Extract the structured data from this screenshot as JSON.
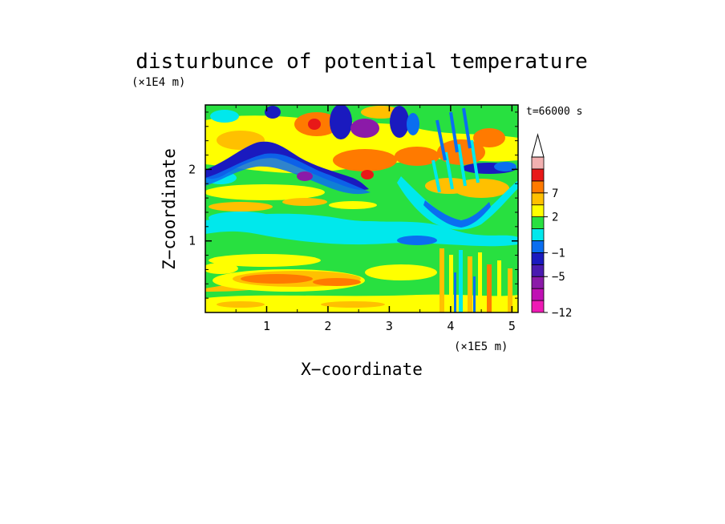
{
  "chart_data": {
    "type": "heatmap",
    "title": "disturbunce of potential temperature",
    "xlabel": "X−coordinate",
    "ylabel": "Z−coordinate",
    "x_unit": "(×1E5 m)",
    "y_unit": "(×1E4 m)",
    "time_label": "t=66000 s",
    "xlim": [
      0,
      5.1
    ],
    "ylim": [
      0,
      2.9
    ],
    "x_ticks": [
      {
        "value": 1,
        "label": "1"
      },
      {
        "value": 2,
        "label": "2"
      },
      {
        "value": 3,
        "label": "3"
      },
      {
        "value": 4,
        "label": "4"
      },
      {
        "value": 5,
        "label": "5"
      }
    ],
    "y_ticks": [
      {
        "value": 1,
        "label": "1"
      },
      {
        "value": 2,
        "label": "2"
      }
    ],
    "colorbar": {
      "levels": [
        -12,
        -9,
        -7,
        -5,
        -3,
        -1,
        0,
        1,
        2,
        4,
        7,
        9,
        12
      ],
      "labeled": [
        {
          "value": -12,
          "label": "−12"
        },
        {
          "value": -5,
          "label": "−5"
        },
        {
          "value": -1,
          "label": "−1"
        },
        {
          "value": 2,
          "label": "2"
        },
        {
          "value": 7,
          "label": "7"
        }
      ],
      "colors": [
        "#ee1ab4",
        "#c011b4",
        "#8b1aa8",
        "#4a1ab0",
        "#1a1abf",
        "#0a6ef0",
        "#00e8ec",
        "#28e040",
        "#ffff00",
        "#ffc000",
        "#ff7a00",
        "#e81818",
        "#f2b0b0"
      ],
      "extend": "max"
    },
    "field_samples": [
      {
        "x": 0.3,
        "z": 0.1,
        "value": 2
      },
      {
        "x": 1.5,
        "z": 0.5,
        "value": 4
      },
      {
        "x": 0.5,
        "z": 0.3,
        "value": 1
      },
      {
        "x": 2.5,
        "z": 0.9,
        "value": 0.5
      },
      {
        "x": 1.5,
        "z": 1.2,
        "value": -0.5
      },
      {
        "x": 3.0,
        "z": 1.1,
        "value": -0.5
      },
      {
        "x": 1.0,
        "z": 1.6,
        "value": 1
      },
      {
        "x": 1.5,
        "z": 2.2,
        "value": 1
      },
      {
        "x": 1.4,
        "z": 2.4,
        "value": -4
      },
      {
        "x": 2.0,
        "z": 2.0,
        "value": -5
      },
      {
        "x": 1.7,
        "z": 2.7,
        "value": 9
      },
      {
        "x": 2.5,
        "z": 2.6,
        "value": -5
      },
      {
        "x": 3.1,
        "z": 2.6,
        "value": -6
      },
      {
        "x": 4.2,
        "z": 2.1,
        "value": 5
      },
      {
        "x": 4.8,
        "z": 2.5,
        "value": 4
      },
      {
        "x": 4.3,
        "z": 1.3,
        "value": -1
      },
      {
        "x": 4.5,
        "z": 0.3,
        "value": 3
      }
    ]
  }
}
